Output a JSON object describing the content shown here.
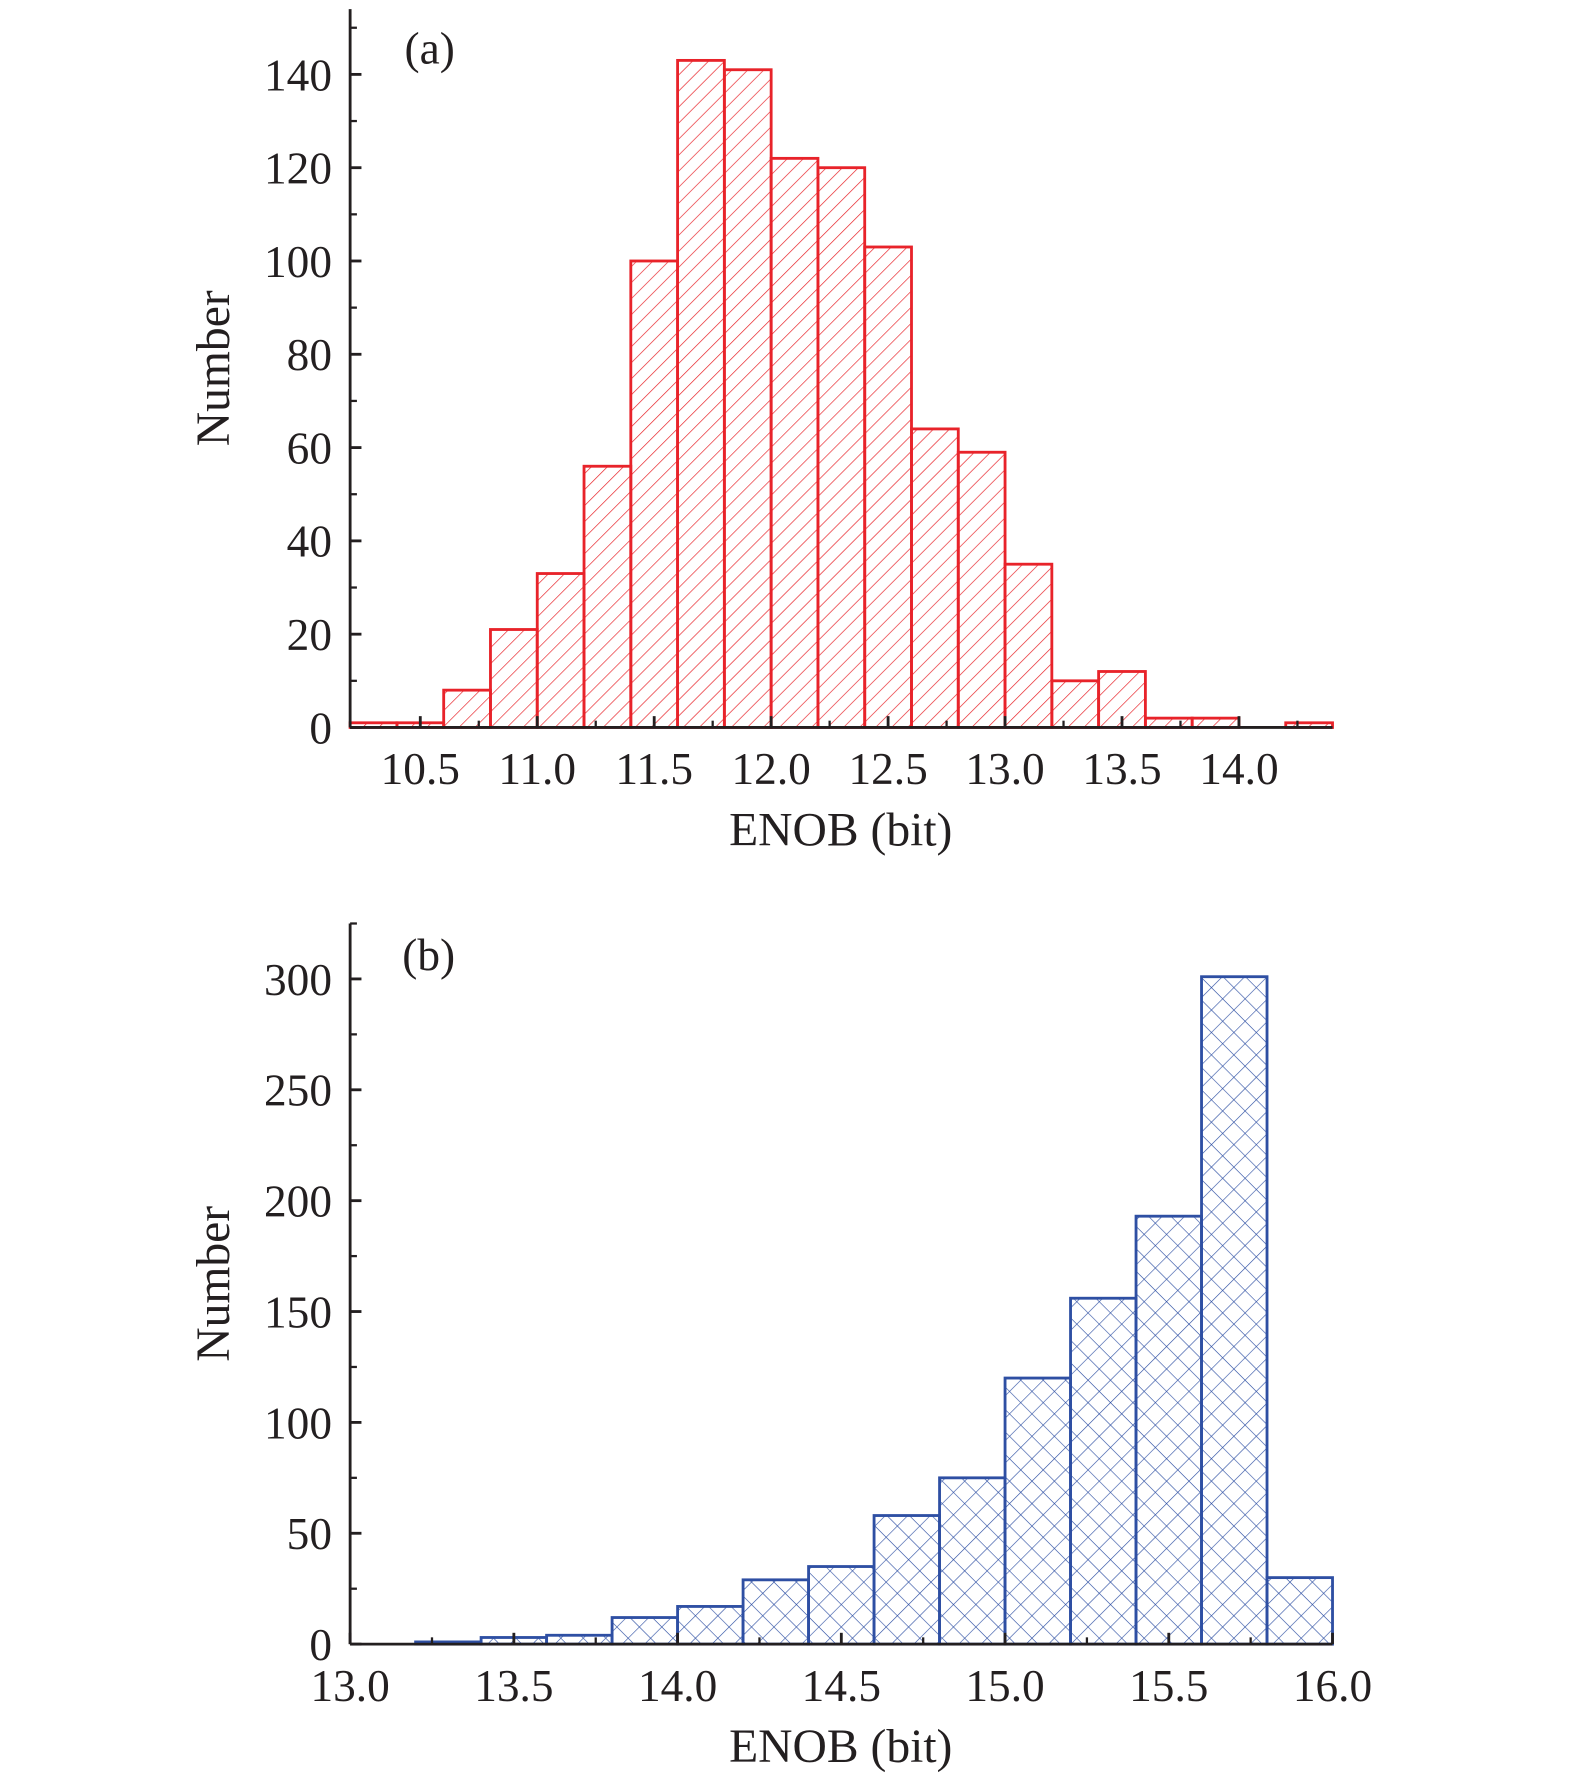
{
  "chart_data": [
    {
      "type": "bar",
      "panel_label": "(a)",
      "xlabel": "ENOB (bit)",
      "ylabel": "Number",
      "xlim": [
        10.2,
        14.4
      ],
      "ylim": [
        0,
        154
      ],
      "xticks": [
        "10.5",
        "11.0",
        "11.5",
        "12.0",
        "12.5",
        "13.0",
        "13.5",
        "14.0"
      ],
      "yticks": [
        "0",
        "20",
        "40",
        "60",
        "80",
        "100",
        "120",
        "140"
      ],
      "bin_width": 0.2,
      "bin_starts": [
        10.2,
        10.4,
        10.6,
        10.8,
        11.0,
        11.2,
        11.4,
        11.6,
        11.8,
        12.0,
        12.2,
        12.4,
        12.6,
        12.8,
        13.0,
        13.2,
        13.4,
        13.6,
        13.8,
        14.0,
        14.2
      ],
      "values": [
        1,
        1,
        8,
        21,
        33,
        56,
        100,
        143,
        141,
        122,
        120,
        103,
        64,
        59,
        35,
        10,
        12,
        2,
        2,
        0,
        1
      ],
      "color": "#e8232a",
      "hatch": "diagonal",
      "grid": false
    },
    {
      "type": "bar",
      "panel_label": "(b)",
      "xlabel": "ENOB (bit)",
      "ylabel": "Number",
      "xlim": [
        13.0,
        16.0
      ],
      "ylim": [
        0,
        325
      ],
      "xticks": [
        "13.0",
        "13.5",
        "14.0",
        "14.5",
        "15.0",
        "15.5",
        "16.0"
      ],
      "yticks": [
        "0",
        "50",
        "100",
        "150",
        "200",
        "250",
        "300"
      ],
      "bin_width": 0.2,
      "bin_starts": [
        13.2,
        13.4,
        13.6,
        13.8,
        14.0,
        14.2,
        14.4,
        14.6,
        14.8,
        15.0,
        15.2,
        15.4,
        15.6,
        15.8
      ],
      "values": [
        1,
        3,
        4,
        12,
        17,
        29,
        35,
        58,
        75,
        120,
        156,
        193,
        301,
        30
      ],
      "color": "#2e4fa3",
      "hatch": "crosshatch",
      "grid": false
    }
  ]
}
